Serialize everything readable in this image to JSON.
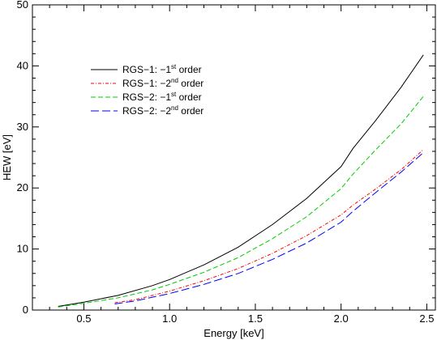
{
  "chart_data": {
    "type": "line",
    "xlabel": "Energy [keV]",
    "ylabel": "HEW [eV]",
    "xlim": [
      0.2,
      2.55
    ],
    "ylim": [
      0,
      50
    ],
    "xticks": [
      0.5,
      1.0,
      1.5,
      2.0,
      2.5
    ],
    "xtick_labels": [
      "0.5",
      "1.0",
      "1.5",
      "2.0",
      "2.5"
    ],
    "yticks": [
      0,
      10,
      20,
      30,
      40,
      50
    ],
    "ytick_labels": [
      "0",
      "10",
      "20",
      "30",
      "40",
      "50"
    ],
    "legend_position": "upper-left",
    "series": [
      {
        "name_prefix": "RGS−1: −1",
        "name_sup": "st",
        "name_suffix": " order",
        "color": "#000000",
        "dash": "solid",
        "x": [
          0.35,
          0.5,
          0.7,
          0.9,
          1.0,
          1.2,
          1.4,
          1.6,
          1.8,
          2.0,
          2.07,
          2.2,
          2.35,
          2.48
        ],
        "y": [
          0.6,
          1.3,
          2.4,
          4.0,
          5.0,
          7.4,
          10.3,
          14.0,
          18.3,
          23.5,
          26.5,
          31.0,
          36.5,
          41.8
        ]
      },
      {
        "name_prefix": "RGS−1: −2",
        "name_sup": "nd",
        "name_suffix": " order",
        "color": "#ff0000",
        "dash": "dashdot",
        "x": [
          0.68,
          0.8,
          1.0,
          1.2,
          1.4,
          1.6,
          1.8,
          2.0,
          2.07,
          2.2,
          2.35,
          2.48
        ],
        "y": [
          1.2,
          1.7,
          3.1,
          4.8,
          6.8,
          9.3,
          12.2,
          15.6,
          17.2,
          19.8,
          23.0,
          26.3
        ]
      },
      {
        "name_prefix": "RGS−2: −1",
        "name_sup": "st",
        "name_suffix": " order",
        "color": "#00cc00",
        "dash": "dashed",
        "x": [
          0.35,
          0.5,
          0.7,
          0.9,
          1.0,
          1.2,
          1.4,
          1.6,
          1.8,
          2.0,
          2.07,
          2.2,
          2.35,
          2.48
        ],
        "y": [
          0.5,
          1.1,
          2.0,
          3.3,
          4.2,
          6.2,
          8.6,
          11.7,
          15.3,
          19.9,
          22.3,
          26.2,
          30.5,
          35.0
        ]
      },
      {
        "name_prefix": "RGS−2: −2",
        "name_sup": "nd",
        "name_suffix": " order",
        "color": "#0000ff",
        "dash": "longdash",
        "x": [
          0.68,
          0.8,
          1.0,
          1.2,
          1.4,
          1.6,
          1.8,
          2.0,
          2.07,
          2.2,
          2.35,
          2.48
        ],
        "y": [
          1.0,
          1.5,
          2.7,
          4.2,
          6.0,
          8.3,
          11.0,
          14.4,
          16.2,
          19.2,
          22.6,
          25.8
        ]
      }
    ]
  }
}
